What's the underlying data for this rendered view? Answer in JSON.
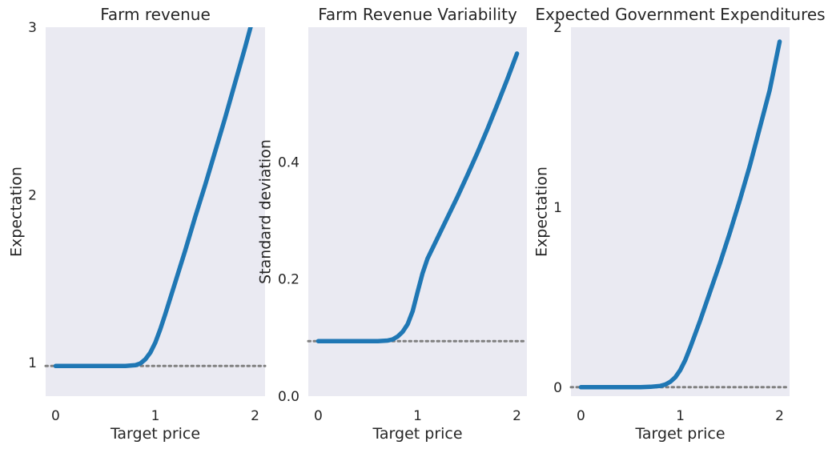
{
  "chart_data": [
    {
      "type": "line",
      "title": "Farm revenue",
      "xlabel": "Target price",
      "ylabel": "Expectation",
      "xlim": [
        -0.1,
        2.1
      ],
      "ylim": [
        0.8,
        3.0
      ],
      "xticks": [
        0,
        1,
        2
      ],
      "xtick_labels": [
        "0",
        "1",
        "2"
      ],
      "yticks": [
        1,
        2,
        3
      ],
      "ytick_labels": [
        "1",
        "2",
        "3"
      ],
      "grid": false,
      "reference_line": {
        "y": 0.98,
        "style": "dotted",
        "color": "#808080"
      },
      "series": [
        {
          "color": "#1f77b4",
          "x": [
            0,
            0.2,
            0.4,
            0.6,
            0.7,
            0.8,
            0.85,
            0.9,
            0.95,
            1.0,
            1.05,
            1.1,
            1.2,
            1.3,
            1.4,
            1.5,
            1.6,
            1.7,
            1.8,
            1.9,
            2.0
          ],
          "y": [
            0.98,
            0.98,
            0.98,
            0.98,
            0.98,
            0.985,
            0.995,
            1.02,
            1.06,
            1.12,
            1.2,
            1.29,
            1.48,
            1.67,
            1.87,
            2.06,
            2.26,
            2.46,
            2.67,
            2.88,
            3.1
          ]
        }
      ]
    },
    {
      "type": "line",
      "title": "Farm Revenue Variability",
      "xlabel": "Target price",
      "ylabel": "Standard deviation",
      "xlim": [
        -0.1,
        2.1
      ],
      "ylim": [
        0.0,
        0.63
      ],
      "xticks": [
        0,
        1,
        2
      ],
      "xtick_labels": [
        "0",
        "1",
        "2"
      ],
      "yticks": [
        0.0,
        0.2,
        0.4
      ],
      "ytick_labels": [
        "0.0",
        "0.2",
        "0.4"
      ],
      "grid": false,
      "reference_line": {
        "y": 0.094,
        "style": "dotted",
        "color": "#808080"
      },
      "series": [
        {
          "color": "#1f77b4",
          "x": [
            0,
            0.2,
            0.4,
            0.6,
            0.7,
            0.75,
            0.8,
            0.85,
            0.9,
            0.95,
            1.0,
            1.05,
            1.1,
            1.2,
            1.3,
            1.4,
            1.5,
            1.6,
            1.7,
            1.8,
            1.9,
            2.0
          ],
          "y": [
            0.094,
            0.094,
            0.094,
            0.094,
            0.095,
            0.097,
            0.102,
            0.11,
            0.123,
            0.145,
            0.178,
            0.21,
            0.235,
            0.27,
            0.305,
            0.34,
            0.377,
            0.415,
            0.455,
            0.497,
            0.54,
            0.585
          ]
        }
      ]
    },
    {
      "type": "line",
      "title": "Expected Government Expenditures",
      "xlabel": "Target price",
      "ylabel": "Expectation",
      "xlim": [
        -0.1,
        2.1
      ],
      "ylim": [
        -0.05,
        2.0
      ],
      "xticks": [
        0,
        1,
        2
      ],
      "xtick_labels": [
        "0",
        "1",
        "2"
      ],
      "yticks": [
        0,
        1,
        2
      ],
      "ytick_labels": [
        "0",
        "1",
        "2"
      ],
      "grid": false,
      "reference_line": {
        "y": 0.0,
        "style": "dotted",
        "color": "#808080"
      },
      "series": [
        {
          "color": "#1f77b4",
          "x": [
            0,
            0.2,
            0.4,
            0.6,
            0.7,
            0.8,
            0.85,
            0.9,
            0.95,
            1.0,
            1.05,
            1.1,
            1.2,
            1.3,
            1.4,
            1.5,
            1.6,
            1.7,
            1.8,
            1.9,
            2.0
          ],
          "y": [
            0.0,
            0.0,
            0.0,
            0.0,
            0.002,
            0.007,
            0.015,
            0.03,
            0.055,
            0.095,
            0.15,
            0.22,
            0.37,
            0.53,
            0.69,
            0.86,
            1.04,
            1.23,
            1.44,
            1.65,
            1.92
          ]
        }
      ]
    }
  ],
  "colors": {
    "plot_background": "#eaeaf2",
    "line": "#1f77b4",
    "reference_line": "#808080"
  }
}
